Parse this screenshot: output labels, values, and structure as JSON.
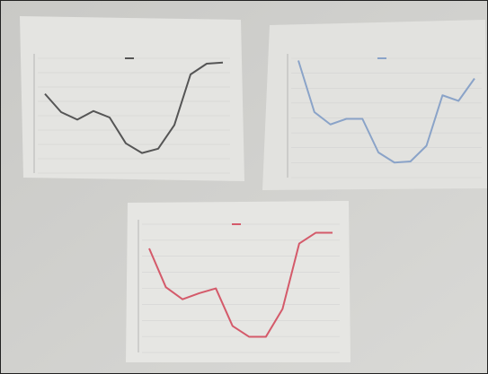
{
  "chart_data": [
    {
      "type": "line",
      "color": "#555555",
      "ylim": [
        0,
        100
      ],
      "values": [
        67,
        50,
        43,
        51,
        45,
        21,
        12,
        16,
        38,
        85,
        95,
        96
      ]
    },
    {
      "type": "line",
      "color": "#8aa3c8",
      "ylim": [
        0,
        100
      ],
      "values": [
        98,
        52,
        41,
        46,
        46,
        16,
        7,
        8,
        22,
        67,
        62,
        82
      ]
    },
    {
      "type": "line",
      "color": "#d45a6a",
      "ylim": [
        0,
        100
      ],
      "values": [
        80,
        48,
        38,
        43,
        47,
        16,
        7,
        7,
        30,
        84,
        93,
        93
      ]
    }
  ]
}
